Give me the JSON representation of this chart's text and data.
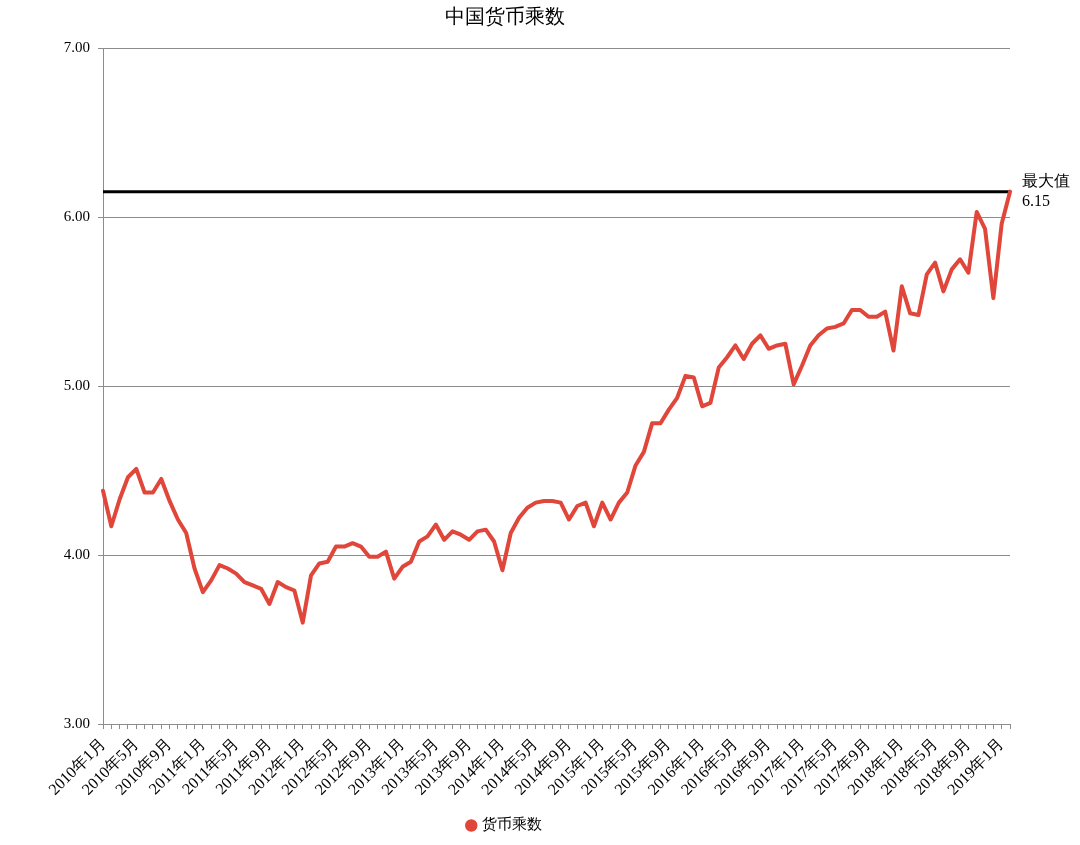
{
  "chart_data": {
    "type": "line",
    "title": "中国货币乘数",
    "categories": [
      "2010年1月",
      null,
      null,
      null,
      "2010年5月",
      null,
      null,
      null,
      "2010年9月",
      null,
      null,
      null,
      "2011年1月",
      null,
      null,
      null,
      "2011年5月",
      null,
      null,
      null,
      "2011年9月",
      null,
      null,
      null,
      "2012年1月",
      null,
      null,
      null,
      "2012年5月",
      null,
      null,
      null,
      "2012年9月",
      null,
      null,
      null,
      "2013年1月",
      null,
      null,
      null,
      "2013年5月",
      null,
      null,
      null,
      "2013年9月",
      null,
      null,
      null,
      "2014年1月",
      null,
      null,
      null,
      "2014年5月",
      null,
      null,
      null,
      "2014年9月",
      null,
      null,
      null,
      "2015年1月",
      null,
      null,
      null,
      "2015年5月",
      null,
      null,
      null,
      "2015年9月",
      null,
      null,
      null,
      "2016年1月",
      null,
      null,
      null,
      "2016年5月",
      null,
      null,
      null,
      "2016年9月",
      null,
      null,
      null,
      "2017年1月",
      null,
      null,
      null,
      "2017年5月",
      null,
      null,
      null,
      "2017年9月",
      null,
      null,
      null,
      "2018年1月",
      null,
      null,
      null,
      "2018年5月",
      null,
      null,
      null,
      "2018年9月",
      null,
      null,
      null,
      "2019年1月",
      null
    ],
    "series": [
      {
        "name": "货币乘数",
        "color": "#e0463a",
        "values": [
          4.38,
          4.17,
          4.33,
          4.46,
          4.51,
          4.37,
          4.37,
          4.45,
          4.32,
          4.21,
          4.13,
          3.92,
          3.78,
          3.85,
          3.94,
          3.92,
          3.89,
          3.84,
          3.82,
          3.8,
          3.71,
          3.84,
          3.81,
          3.79,
          3.6,
          3.88,
          3.95,
          3.96,
          4.05,
          4.05,
          4.07,
          4.05,
          3.99,
          3.99,
          4.02,
          3.86,
          3.93,
          3.96,
          4.08,
          4.11,
          4.18,
          4.09,
          4.14,
          4.12,
          4.09,
          4.14,
          4.15,
          4.08,
          3.91,
          4.13,
          4.22,
          4.28,
          4.31,
          4.32,
          4.32,
          4.31,
          4.21,
          4.29,
          4.31,
          4.17,
          4.31,
          4.21,
          4.31,
          4.37,
          4.53,
          4.61,
          4.78,
          4.78,
          4.86,
          4.93,
          5.06,
          5.05,
          4.88,
          4.9,
          5.11,
          5.17,
          5.24,
          5.16,
          5.25,
          5.3,
          5.22,
          5.24,
          5.25,
          5.01,
          5.12,
          5.24,
          5.3,
          5.34,
          5.35,
          5.37,
          5.45,
          5.45,
          5.41,
          5.41,
          5.44,
          5.21,
          5.59,
          5.43,
          5.42,
          5.66,
          5.73,
          5.56,
          5.69,
          5.75,
          5.67,
          6.03,
          5.93,
          5.52,
          5.96,
          6.15
        ]
      }
    ],
    "ylim": [
      3,
      7
    ],
    "yticks": [
      {
        "value": 3,
        "label": "3.00"
      },
      {
        "value": 4,
        "label": "4.00"
      },
      {
        "value": 5,
        "label": "5.00"
      },
      {
        "value": 6,
        "label": "6.00"
      },
      {
        "value": 7,
        "label": "7.00"
      }
    ],
    "grid": "y",
    "legend": "bottom",
    "ref_lines": [
      {
        "axis": "y",
        "value": 6.15,
        "label": "最大值\n6.15",
        "color": "#000000"
      }
    ]
  }
}
